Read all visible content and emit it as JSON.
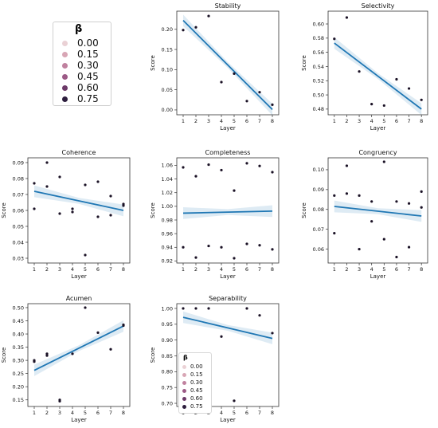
{
  "legend": {
    "title": "β",
    "levels": [
      {
        "label": "0.00",
        "color": "#ead1d5"
      },
      {
        "label": "0.15",
        "color": "#d8a6b5"
      },
      {
        "label": "0.30",
        "color": "#c0819f"
      },
      {
        "label": "0.45",
        "color": "#9c5a86"
      },
      {
        "label": "0.60",
        "color": "#6d3a69"
      },
      {
        "label": "0.75",
        "color": "#2d1e3e"
      }
    ]
  },
  "line_color": "#1f77b4",
  "chart_data": [
    {
      "type": "scatter",
      "title": "Stability",
      "xlabel": "Layer",
      "ylabel": "Score",
      "xticks": [
        1,
        2,
        3,
        4,
        5,
        6,
        7,
        8
      ],
      "yticks": [
        0.0,
        0.05,
        0.1,
        0.15,
        0.2
      ],
      "ytick_labels": [
        "0.00",
        "0.05",
        "0.10",
        "0.15",
        "0.20"
      ],
      "ylim": [
        -0.012,
        0.245
      ],
      "points": [
        [
          1,
          0.198
        ],
        [
          2,
          0.205
        ],
        [
          3,
          0.233
        ],
        [
          4,
          0.069
        ],
        [
          5,
          0.09
        ],
        [
          6,
          0.022
        ],
        [
          7,
          0.044
        ],
        [
          8,
          0.013
        ]
      ],
      "trend": {
        "y_at_1": 0.222,
        "y_at_8": 0.001
      }
    },
    {
      "type": "scatter",
      "title": "Selectivity",
      "xlabel": "Layer",
      "ylabel": "Score",
      "xticks": [
        1,
        2,
        3,
        4,
        5,
        6,
        7,
        8
      ],
      "yticks": [
        0.48,
        0.5,
        0.52,
        0.54,
        0.56,
        0.58,
        0.6
      ],
      "ytick_labels": [
        "0.48",
        "0.50",
        "0.52",
        "0.54",
        "0.56",
        "0.58",
        "0.60"
      ],
      "ylim": [
        0.472,
        0.618
      ],
      "points": [
        [
          1,
          0.579
        ],
        [
          2,
          0.609
        ],
        [
          3,
          0.533
        ],
        [
          4,
          0.487
        ],
        [
          5,
          0.485
        ],
        [
          6,
          0.522
        ],
        [
          7,
          0.509
        ],
        [
          8,
          0.493
        ]
      ],
      "trend": {
        "y_at_1": 0.573,
        "y_at_8": 0.48
      }
    },
    {
      "type": "scatter",
      "title": "Coherence",
      "xlabel": "Layer",
      "ylabel": "Score",
      "xticks": [
        1,
        2,
        3,
        4,
        5,
        6,
        7,
        8
      ],
      "yticks": [
        0.03,
        0.04,
        0.05,
        0.06,
        0.07,
        0.08,
        0.09
      ],
      "ytick_labels": [
        "0.03",
        "0.04",
        "0.05",
        "0.06",
        "0.07",
        "0.08",
        "0.09"
      ],
      "ylim": [
        0.027,
        0.093
      ],
      "points": [
        [
          1,
          0.077
        ],
        [
          1,
          0.061
        ],
        [
          2,
          0.09
        ],
        [
          2,
          0.075
        ],
        [
          3,
          0.081
        ],
        [
          3,
          0.058
        ],
        [
          4,
          0.061
        ],
        [
          4,
          0.059
        ],
        [
          5,
          0.076
        ],
        [
          5,
          0.032
        ],
        [
          6,
          0.078
        ],
        [
          6,
          0.056
        ],
        [
          7,
          0.069
        ],
        [
          7,
          0.057
        ],
        [
          8,
          0.064
        ],
        [
          8,
          0.063
        ]
      ],
      "trend": {
        "y_at_1": 0.072,
        "y_at_8": 0.06
      }
    },
    {
      "type": "scatter",
      "title": "Completeness",
      "xlabel": "Layer",
      "ylabel": "Score",
      "xticks": [
        1,
        2,
        3,
        4,
        5,
        6,
        7,
        8
      ],
      "yticks": [
        0.92,
        0.94,
        0.96,
        0.98,
        1.0,
        1.02,
        1.04,
        1.06
      ],
      "ytick_labels": [
        "0.92",
        "0.94",
        "0.96",
        "0.98",
        "1.00",
        "1.02",
        "1.04",
        "1.06"
      ],
      "ylim": [
        0.917,
        1.071
      ],
      "points": [
        [
          1,
          1.057
        ],
        [
          1,
          0.94
        ],
        [
          2,
          1.044
        ],
        [
          2,
          0.925
        ],
        [
          3,
          1.061
        ],
        [
          3,
          0.942
        ],
        [
          4,
          1.053
        ],
        [
          4,
          0.94
        ],
        [
          5,
          1.023
        ],
        [
          5,
          0.924
        ],
        [
          6,
          1.063
        ],
        [
          6,
          0.945
        ],
        [
          7,
          1.059
        ],
        [
          7,
          0.943
        ],
        [
          8,
          1.05
        ],
        [
          8,
          0.937
        ]
      ],
      "trend": {
        "y_at_1": 0.99,
        "y_at_8": 0.993
      }
    },
    {
      "type": "scatter",
      "title": "Congruency",
      "xlabel": "Layer",
      "ylabel": "Score",
      "xticks": [
        1,
        2,
        3,
        4,
        5,
        6,
        7,
        8
      ],
      "yticks": [
        0.06,
        0.07,
        0.08,
        0.09,
        0.1
      ],
      "ytick_labels": [
        "0.06",
        "0.07",
        "0.08",
        "0.09",
        "0.10"
      ],
      "ylim": [
        0.053,
        0.106
      ],
      "points": [
        [
          1,
          0.087
        ],
        [
          1,
          0.068
        ],
        [
          2,
          0.102
        ],
        [
          2,
          0.088
        ],
        [
          3,
          0.087
        ],
        [
          3,
          0.06
        ],
        [
          4,
          0.084
        ],
        [
          4,
          0.074
        ],
        [
          5,
          0.104
        ],
        [
          5,
          0.065
        ],
        [
          6,
          0.084
        ],
        [
          6,
          0.056
        ],
        [
          7,
          0.083
        ],
        [
          7,
          0.061
        ],
        [
          8,
          0.089
        ],
        [
          8,
          0.081
        ]
      ],
      "trend": {
        "y_at_1": 0.0815,
        "y_at_8": 0.0767
      }
    },
    {
      "type": "scatter",
      "title": "Acumen",
      "xlabel": "Layer",
      "ylabel": "Score",
      "xticks": [
        1,
        2,
        3,
        4,
        5,
        6,
        7,
        8
      ],
      "yticks": [
        0.15,
        0.2,
        0.25,
        0.3,
        0.35,
        0.4,
        0.45,
        0.5
      ],
      "ytick_labels": [
        "0.15",
        "0.20",
        "0.25",
        "0.30",
        "0.35",
        "0.40",
        "0.45",
        "0.50"
      ],
      "ylim": [
        0.125,
        0.515
      ],
      "points": [
        [
          1,
          0.3
        ],
        [
          1,
          0.295
        ],
        [
          2,
          0.325
        ],
        [
          2,
          0.318
        ],
        [
          3,
          0.15
        ],
        [
          3,
          0.145
        ],
        [
          4,
          0.325
        ],
        [
          5,
          0.5
        ],
        [
          6,
          0.405
        ],
        [
          7,
          0.342
        ],
        [
          8,
          0.435
        ],
        [
          8,
          0.432
        ]
      ],
      "trend": {
        "y_at_1": 0.262,
        "y_at_8": 0.43
      }
    },
    {
      "type": "scatter",
      "title": "Separability",
      "xlabel": "Layer",
      "ylabel": "Score",
      "xticks": [
        1,
        2,
        3,
        4,
        5,
        6,
        7,
        8
      ],
      "yticks": [
        0.7,
        0.75,
        0.8,
        0.85,
        0.9,
        0.95,
        1.0
      ],
      "ytick_labels": [
        "0.70",
        "0.75",
        "0.80",
        "0.85",
        "0.90",
        "0.95",
        "1.00"
      ],
      "ylim": [
        0.69,
        1.015
      ],
      "points": [
        [
          1,
          1.0
        ],
        [
          2,
          1.0
        ],
        [
          3,
          1.0
        ],
        [
          4,
          0.911
        ],
        [
          5,
          0.708
        ],
        [
          6,
          1.0
        ],
        [
          7,
          0.978
        ],
        [
          8,
          0.922
        ]
      ],
      "trend": {
        "y_at_1": 0.972,
        "y_at_8": 0.905
      }
    }
  ]
}
